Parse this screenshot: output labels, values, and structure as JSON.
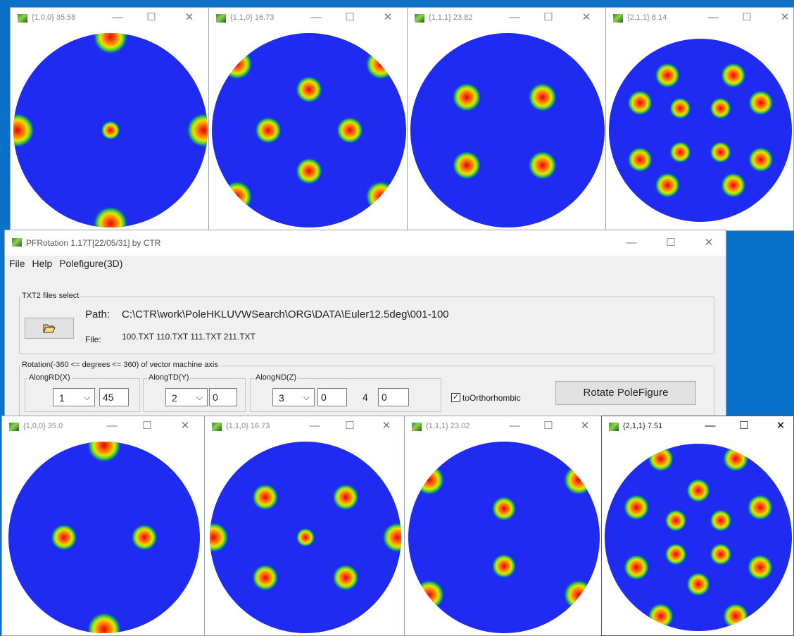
{
  "top_windows": [
    {
      "title": "{1,0,0} 35.58",
      "active": false,
      "spots": [
        [
          0.5,
          0.02,
          0.09
        ],
        [
          0.5,
          0.98,
          0.09
        ],
        [
          0.02,
          0.5,
          0.09
        ],
        [
          0.98,
          0.5,
          0.09
        ],
        [
          0.5,
          0.5,
          0.05
        ]
      ]
    },
    {
      "title": "{1,1,0} 16.73",
      "active": false,
      "spots": [
        [
          0.5,
          0.29,
          0.07
        ],
        [
          0.29,
          0.5,
          0.07
        ],
        [
          0.71,
          0.5,
          0.07
        ],
        [
          0.5,
          0.71,
          0.07
        ],
        [
          0.13,
          0.16,
          0.08
        ],
        [
          0.87,
          0.16,
          0.08
        ],
        [
          0.13,
          0.84,
          0.08
        ],
        [
          0.87,
          0.84,
          0.08
        ]
      ]
    },
    {
      "title": "{1,1,1} 23.82",
      "active": false,
      "spots": [
        [
          0.29,
          0.33,
          0.075
        ],
        [
          0.68,
          0.33,
          0.075
        ],
        [
          0.29,
          0.68,
          0.075
        ],
        [
          0.68,
          0.68,
          0.075
        ]
      ]
    },
    {
      "title": "{2,1,1} 8.14",
      "active": false,
      "spots": [
        [
          0.32,
          0.2,
          0.07
        ],
        [
          0.68,
          0.2,
          0.07
        ],
        [
          0.17,
          0.35,
          0.07
        ],
        [
          0.83,
          0.35,
          0.07
        ],
        [
          0.39,
          0.38,
          0.06
        ],
        [
          0.61,
          0.38,
          0.06
        ],
        [
          0.17,
          0.66,
          0.07
        ],
        [
          0.83,
          0.66,
          0.07
        ],
        [
          0.39,
          0.62,
          0.06
        ],
        [
          0.61,
          0.62,
          0.06
        ],
        [
          0.32,
          0.8,
          0.07
        ],
        [
          0.68,
          0.8,
          0.07
        ]
      ]
    }
  ],
  "bottom_windows": [
    {
      "title": "{1,0,0} 35.0",
      "active": false,
      "spots": [
        [
          0.5,
          0.02,
          0.09
        ],
        [
          0.5,
          0.98,
          0.09
        ],
        [
          0.29,
          0.5,
          0.07
        ],
        [
          0.71,
          0.5,
          0.07
        ]
      ]
    },
    {
      "title": "{1,1,0} 16.73",
      "active": false,
      "spots": [
        [
          0.29,
          0.29,
          0.07
        ],
        [
          0.71,
          0.29,
          0.07
        ],
        [
          0.29,
          0.71,
          0.07
        ],
        [
          0.71,
          0.71,
          0.07
        ],
        [
          0.5,
          0.5,
          0.05
        ],
        [
          0.02,
          0.5,
          0.08
        ],
        [
          0.98,
          0.5,
          0.08
        ]
      ]
    },
    {
      "title": "{1,1,1} 23.02",
      "active": false,
      "spots": [
        [
          0.5,
          0.35,
          0.065
        ],
        [
          0.5,
          0.65,
          0.065
        ],
        [
          0.11,
          0.2,
          0.08
        ],
        [
          0.89,
          0.2,
          0.08
        ],
        [
          0.11,
          0.8,
          0.08
        ],
        [
          0.89,
          0.8,
          0.08
        ]
      ]
    },
    {
      "title": "{2,1,1} 7.51",
      "active": true,
      "spots": [
        [
          0.5,
          0.25,
          0.065
        ],
        [
          0.5,
          0.75,
          0.065
        ],
        [
          0.38,
          0.41,
          0.06
        ],
        [
          0.62,
          0.41,
          0.06
        ],
        [
          0.38,
          0.59,
          0.06
        ],
        [
          0.62,
          0.59,
          0.06
        ],
        [
          0.17,
          0.34,
          0.07
        ],
        [
          0.83,
          0.34,
          0.07
        ],
        [
          0.17,
          0.66,
          0.07
        ],
        [
          0.83,
          0.66,
          0.07
        ],
        [
          0.3,
          0.08,
          0.07
        ],
        [
          0.7,
          0.08,
          0.07
        ],
        [
          0.3,
          0.92,
          0.07
        ],
        [
          0.7,
          0.92,
          0.07
        ]
      ]
    }
  ],
  "window_controls": {
    "minimize": "—",
    "maximize": "☐",
    "close": "✕"
  },
  "main": {
    "title": "PFRotation 1.17T[22/05/31] by CTR",
    "menu": [
      "File",
      "Help",
      "Polefigure(3D)"
    ],
    "files_group": {
      "label": "TXT2 files select",
      "path_label": "Path:",
      "path_value": "C:\\CTR\\work\\PoleHKLUVWSearch\\ORG\\DATA\\Euler12.5deg\\001-100",
      "file_label": "File:",
      "file_value": "100.TXT 110.TXT 111.TXT 211.TXT",
      "open_icon": "folder-open-icon"
    },
    "rotation_group": {
      "label": "Rotation(-360 <= degrees <= 360) of vector machine axis",
      "rd": {
        "label": "AlongRD(X)",
        "axis": "1",
        "angle": "45"
      },
      "td": {
        "label": "AlongTD(Y)",
        "axis": "2",
        "angle": "0"
      },
      "nd": {
        "label": "AlongND(Z)",
        "axis": "3",
        "angle": "0",
        "extra_num": "4",
        "extra_angle": "0"
      },
      "orthorhombic_label": "toOrthorhombic",
      "orthorhombic_checked": true,
      "rotate_button": "Rotate PoleFigure"
    }
  },
  "colors": {
    "background": "#0a72c9",
    "disc": "#1f2bf0",
    "spot_core": "#e8000a"
  }
}
